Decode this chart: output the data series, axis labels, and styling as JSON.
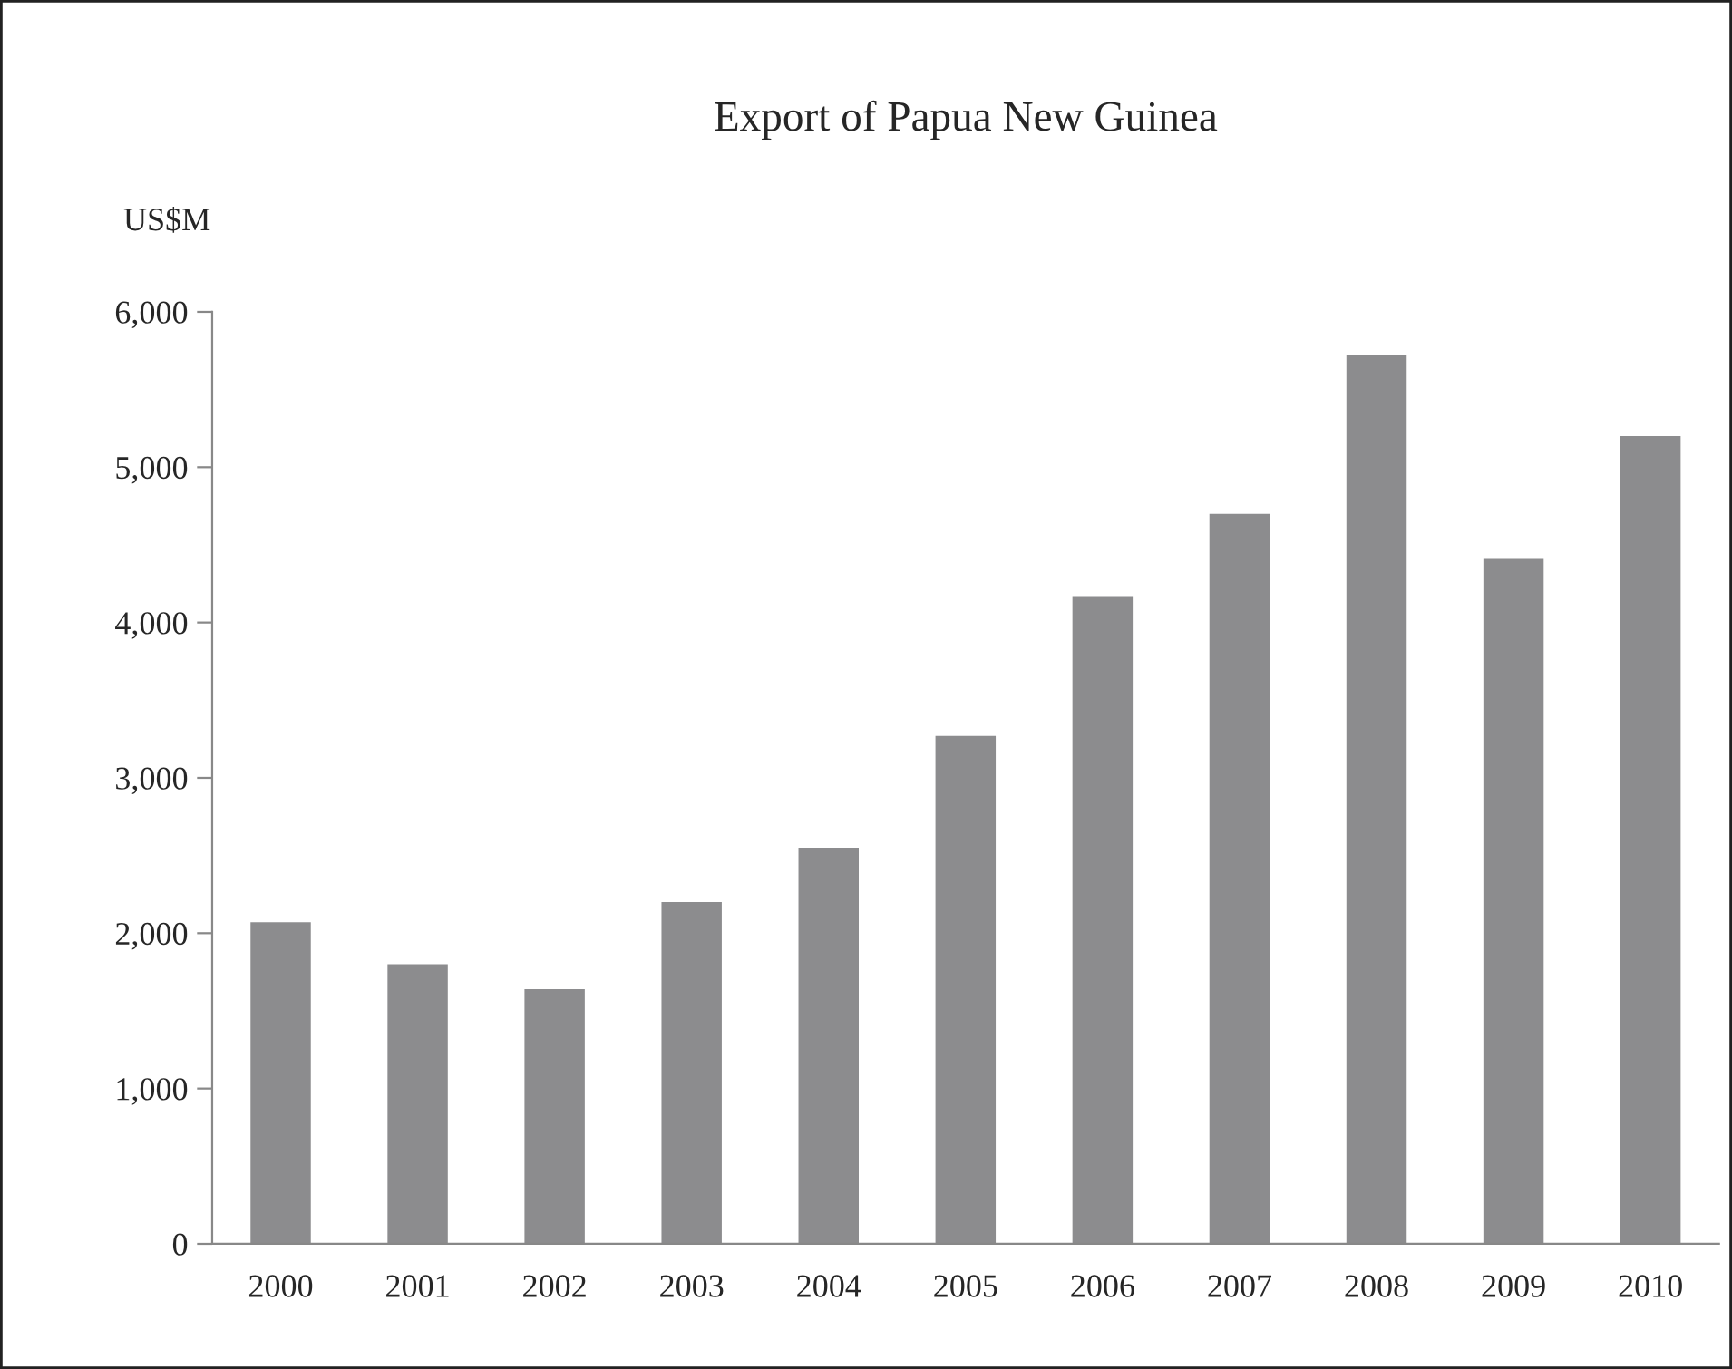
{
  "chart_data": {
    "type": "bar",
    "title": "Export of Papua New Guinea",
    "ylabel": "US$M",
    "categories": [
      "2000",
      "2001",
      "2002",
      "2003",
      "2004",
      "2005",
      "2006",
      "2007",
      "2008",
      "2009",
      "2010"
    ],
    "values": [
      2070,
      1800,
      1640,
      2200,
      2550,
      3270,
      4170,
      4700,
      5720,
      4410,
      5200
    ],
    "color": "#8c8c8e",
    "ylim": [
      0,
      6000
    ],
    "yticks": [
      {
        "value": 0,
        "label": "0"
      },
      {
        "value": 1000,
        "label": "1,000"
      },
      {
        "value": 2000,
        "label": "2,000"
      },
      {
        "value": 3000,
        "label": "3,000"
      },
      {
        "value": 4000,
        "label": "4,000"
      },
      {
        "value": 5000,
        "label": "5,000"
      },
      {
        "value": 6000,
        "label": "6,000"
      }
    ],
    "grid": false,
    "legend": false
  }
}
